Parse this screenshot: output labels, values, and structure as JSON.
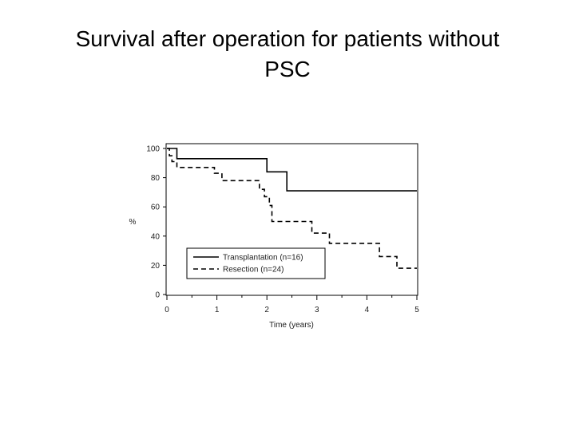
{
  "slide": {
    "title_line1": "Survival after operation for patients without",
    "title_line2": "PSC"
  },
  "chart_data": {
    "type": "line",
    "step": true,
    "xlabel": "Time (years)",
    "ylabel": "%",
    "xlim": [
      0,
      5
    ],
    "ylim": [
      0,
      100
    ],
    "xticks": [
      "0",
      "1",
      "2",
      "3",
      "4",
      "5"
    ],
    "yticks": [
      "0",
      "20",
      "40",
      "60",
      "80",
      "100"
    ],
    "grid": false,
    "legend": "bottom-left",
    "series": [
      {
        "name": "Transplantation (n=16)",
        "style": "solid",
        "color": "#000000",
        "points": [
          [
            0,
            100
          ],
          [
            0.2,
            100
          ],
          [
            0.2,
            93
          ],
          [
            2.0,
            93
          ],
          [
            2.0,
            84
          ],
          [
            2.4,
            84
          ],
          [
            2.4,
            71
          ],
          [
            5.0,
            71
          ]
        ]
      },
      {
        "name": "Resection (n=24)",
        "style": "dashed",
        "color": "#000000",
        "points": [
          [
            0,
            100
          ],
          [
            0.05,
            100
          ],
          [
            0.05,
            95
          ],
          [
            0.1,
            95
          ],
          [
            0.1,
            91
          ],
          [
            0.2,
            91
          ],
          [
            0.2,
            87
          ],
          [
            0.95,
            87
          ],
          [
            0.95,
            83
          ],
          [
            1.1,
            83
          ],
          [
            1.1,
            78
          ],
          [
            1.85,
            78
          ],
          [
            1.85,
            72
          ],
          [
            1.95,
            72
          ],
          [
            1.95,
            67
          ],
          [
            2.05,
            67
          ],
          [
            2.05,
            61
          ],
          [
            2.1,
            61
          ],
          [
            2.1,
            50
          ],
          [
            2.9,
            50
          ],
          [
            2.9,
            42
          ],
          [
            3.25,
            42
          ],
          [
            3.25,
            35
          ],
          [
            4.25,
            35
          ],
          [
            4.25,
            26
          ],
          [
            4.6,
            26
          ],
          [
            4.6,
            18
          ],
          [
            5.0,
            18
          ]
        ]
      }
    ]
  }
}
